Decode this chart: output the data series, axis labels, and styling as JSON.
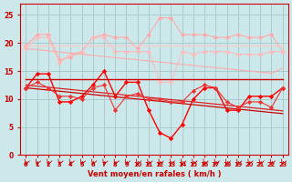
{
  "title": "",
  "xlabel": "Vent moyen/en rafales ( km/h )",
  "ylabel": "",
  "bg_color": "#cce8ea",
  "grid_color": "#aacccc",
  "x": [
    0,
    1,
    2,
    3,
    4,
    5,
    6,
    7,
    8,
    9,
    10,
    11,
    12,
    13,
    14,
    15,
    16,
    17,
    18,
    19,
    20,
    21,
    22,
    23
  ],
  "line_pink1_data": [
    19.5,
    21.5,
    21.5,
    17.0,
    17.5,
    18.5,
    21.0,
    21.5,
    21.0,
    21.0,
    19.0,
    21.5,
    24.5,
    24.5,
    21.5,
    21.5,
    21.5,
    21.0,
    21.0,
    21.5,
    21.0,
    21.0,
    21.5,
    18.5
  ],
  "line_pink2_data": [
    19.0,
    21.0,
    21.0,
    16.5,
    18.0,
    18.5,
    21.0,
    21.0,
    18.5,
    18.5,
    18.5,
    18.5,
    13.0,
    13.0,
    18.5,
    18.0,
    18.5,
    18.5,
    18.5,
    18.0,
    18.0,
    18.0,
    18.5,
    18.5
  ],
  "line_pink3_flat": [
    19.5,
    19.5,
    19.5,
    19.5,
    19.5,
    19.5,
    19.5,
    19.5,
    19.5,
    19.5,
    19.5,
    19.5,
    19.5,
    19.5,
    19.5,
    19.5,
    19.5,
    19.5,
    19.5,
    19.5,
    19.5,
    19.5,
    19.5,
    19.5
  ],
  "line_pink_trend": [
    19.0,
    18.8,
    18.6,
    18.4,
    18.2,
    18.0,
    17.8,
    17.6,
    17.4,
    17.2,
    17.0,
    16.8,
    16.6,
    16.4,
    16.2,
    16.0,
    15.8,
    15.6,
    15.4,
    15.2,
    15.0,
    14.8,
    14.6,
    15.5
  ],
  "line_red_jagged": [
    12.0,
    14.5,
    14.5,
    9.5,
    9.5,
    10.5,
    12.5,
    15.0,
    10.5,
    13.0,
    13.0,
    8.0,
    4.0,
    3.0,
    5.5,
    10.0,
    12.0,
    12.0,
    8.0,
    8.0,
    10.5,
    10.5,
    10.5,
    12.0
  ],
  "line_red_flat": [
    13.5,
    13.5,
    13.5,
    13.5,
    13.5,
    13.5,
    13.5,
    13.5,
    13.5,
    13.5,
    13.5,
    13.5,
    13.5,
    13.5,
    13.5,
    13.5,
    13.5,
    13.5,
    13.5,
    13.5,
    13.5,
    13.5,
    13.5,
    13.5
  ],
  "line_red_trend1": [
    12.0,
    11.8,
    11.6,
    11.4,
    11.2,
    11.0,
    10.8,
    10.6,
    10.4,
    10.2,
    10.0,
    9.8,
    9.6,
    9.4,
    9.2,
    9.0,
    8.8,
    8.6,
    8.4,
    8.2,
    8.0,
    7.8,
    7.6,
    7.4
  ],
  "line_red_trend2": [
    12.5,
    12.3,
    12.1,
    11.9,
    11.7,
    11.5,
    11.3,
    11.1,
    10.9,
    10.7,
    10.5,
    10.3,
    10.1,
    9.9,
    9.7,
    9.5,
    9.3,
    9.1,
    8.9,
    8.7,
    8.5,
    8.3,
    8.1,
    7.9
  ],
  "line_red_dots": [
    12.0,
    13.0,
    12.0,
    10.5,
    10.5,
    10.0,
    12.0,
    12.5,
    8.0,
    10.5,
    11.0,
    10.0,
    10.0,
    9.5,
    9.5,
    11.5,
    12.5,
    12.0,
    9.5,
    8.5,
    9.5,
    9.5,
    8.5,
    12.0
  ],
  "ylim": [
    0,
    27
  ],
  "xlim_min": -0.5,
  "xlim_max": 23.5
}
